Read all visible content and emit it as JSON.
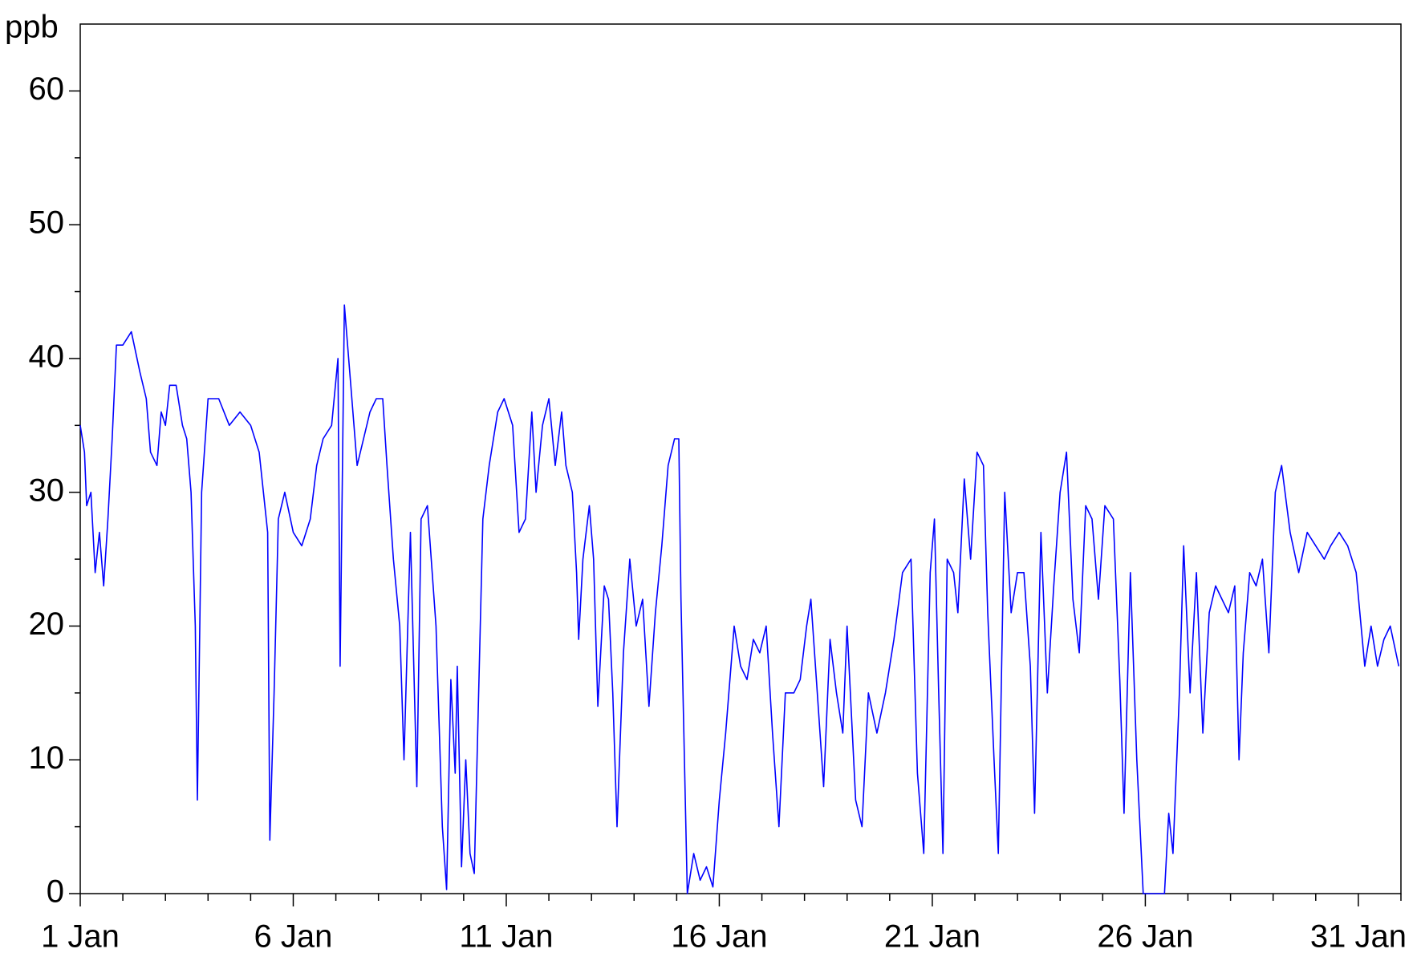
{
  "chart_data": {
    "type": "line",
    "y_label": "ppb",
    "x": [
      0,
      0.1,
      0.15,
      0.25,
      0.35,
      0.45,
      0.55,
      0.65,
      0.75,
      0.85,
      1.0,
      1.2,
      1.4,
      1.55,
      1.65,
      1.8,
      1.9,
      2.0,
      2.1,
      2.25,
      2.4,
      2.5,
      2.6,
      2.7,
      2.75,
      2.85,
      3.0,
      3.25,
      3.5,
      3.75,
      4.0,
      4.2,
      4.4,
      4.45,
      4.55,
      4.65,
      4.8,
      5.0,
      5.2,
      5.4,
      5.55,
      5.7,
      5.9,
      6.05,
      6.1,
      6.2,
      6.35,
      6.5,
      6.65,
      6.8,
      6.95,
      7.1,
      7.2,
      7.35,
      7.5,
      7.6,
      7.75,
      7.9,
      8.0,
      8.15,
      8.35,
      8.5,
      8.6,
      8.7,
      8.8,
      8.85,
      8.95,
      9.05,
      9.15,
      9.25,
      9.45,
      9.6,
      9.8,
      9.95,
      10.15,
      10.3,
      10.45,
      10.6,
      10.7,
      10.85,
      11.0,
      11.15,
      11.3,
      11.4,
      11.55,
      11.65,
      11.7,
      11.8,
      11.95,
      12.05,
      12.15,
      12.3,
      12.4,
      12.5,
      12.6,
      12.75,
      12.9,
      13.05,
      13.2,
      13.35,
      13.5,
      13.65,
      13.8,
      13.95,
      14.05,
      14.1,
      14.25,
      14.4,
      14.55,
      14.7,
      14.85,
      15.0,
      15.15,
      15.35,
      15.5,
      15.65,
      15.8,
      15.95,
      16.1,
      16.25,
      16.4,
      16.55,
      16.75,
      16.9,
      17.05,
      17.15,
      17.3,
      17.45,
      17.6,
      17.75,
      17.9,
      18.0,
      18.2,
      18.35,
      18.5,
      18.7,
      18.9,
      19.1,
      19.3,
      19.5,
      19.65,
      19.8,
      19.95,
      20.05,
      20.15,
      20.25,
      20.35,
      20.5,
      20.6,
      20.75,
      20.9,
      21.05,
      21.2,
      21.3,
      21.45,
      21.55,
      21.7,
      21.85,
      22.0,
      22.15,
      22.3,
      22.4,
      22.55,
      22.7,
      22.85,
      23.0,
      23.15,
      23.3,
      23.45,
      23.6,
      23.75,
      23.9,
      24.05,
      24.25,
      24.4,
      24.5,
      24.65,
      24.8,
      24.95,
      25.2,
      25.45,
      25.55,
      25.65,
      25.8,
      25.9,
      26.05,
      26.2,
      26.35,
      26.5,
      26.65,
      26.8,
      26.95,
      27.1,
      27.2,
      27.3,
      27.45,
      27.6,
      27.75,
      27.9,
      28.05,
      28.2,
      28.4,
      28.6,
      28.8,
      29.0,
      29.2,
      29.35,
      29.55,
      29.75,
      29.95,
      30.15,
      30.3,
      30.45,
      30.6,
      30.75,
      30.95
    ],
    "series": [
      {
        "color": "#0000ff",
        "values": [
          35,
          33,
          29,
          30,
          24,
          27,
          23,
          28,
          34,
          41,
          41,
          42,
          39,
          37,
          33,
          32,
          36,
          35,
          38,
          38,
          35,
          34,
          30,
          20,
          7,
          30,
          37,
          37,
          35,
          36,
          35,
          33,
          27,
          4,
          15,
          28,
          30,
          27,
          26,
          28,
          32,
          34,
          35,
          40,
          17,
          44,
          38,
          32,
          34,
          36,
          37,
          37,
          32,
          25,
          20,
          10,
          27,
          8,
          28,
          29,
          20,
          5,
          0.3,
          16,
          9,
          17,
          2,
          10,
          3,
          1.5,
          28,
          32,
          36,
          37,
          35,
          27,
          28,
          36,
          30,
          35,
          37,
          32,
          36,
          32,
          30,
          24,
          19,
          25,
          29,
          25,
          14,
          23,
          22,
          15,
          5,
          18,
          25,
          20,
          22,
          14,
          21,
          26,
          32,
          34,
          34,
          22,
          0,
          3,
          1,
          2,
          0.5,
          7,
          12,
          20,
          17,
          16,
          19,
          18,
          20,
          12,
          5,
          15,
          15,
          16,
          20,
          22,
          15,
          8,
          19,
          15,
          12,
          20,
          7,
          5,
          15,
          12,
          15,
          19,
          24,
          25,
          9,
          3,
          24,
          28,
          15,
          3,
          25,
          24,
          21,
          31,
          25,
          33,
          32,
          21,
          10,
          3,
          30,
          21,
          24,
          24,
          17,
          6,
          27,
          15,
          23,
          30,
          33,
          22,
          18,
          29,
          28,
          22,
          29,
          28,
          16,
          6,
          24,
          10,
          0,
          0,
          0,
          6,
          3,
          15,
          26,
          15,
          24,
          12,
          21,
          23,
          22,
          21,
          23,
          10,
          18,
          24,
          23,
          25,
          18,
          30,
          32,
          27,
          24,
          27,
          26,
          25,
          26,
          27,
          26,
          24,
          17,
          20,
          17,
          19,
          20,
          17
        ]
      }
    ],
    "xlim": [
      0,
      31
    ],
    "xticks": [
      {
        "value": 0,
        "label": "1 Jan"
      },
      {
        "value": 5,
        "label": "6 Jan"
      },
      {
        "value": 10,
        "label": "11 Jan"
      },
      {
        "value": 15,
        "label": "16 Jan"
      },
      {
        "value": 20,
        "label": "21 Jan"
      },
      {
        "value": 25,
        "label": "26 Jan"
      },
      {
        "value": 30,
        "label": "31 Jan"
      }
    ],
    "x_minor_ticks": [
      1,
      2,
      3,
      4,
      6,
      7,
      8,
      9,
      11,
      12,
      13,
      14,
      16,
      17,
      18,
      19,
      21,
      22,
      23,
      24,
      26,
      27,
      28,
      29,
      31
    ],
    "ylim": [
      0,
      65
    ],
    "yticks": [
      0,
      10,
      20,
      30,
      40,
      50,
      60
    ],
    "y_minor_ticks": [
      5,
      15,
      25,
      35,
      45,
      55
    ]
  }
}
